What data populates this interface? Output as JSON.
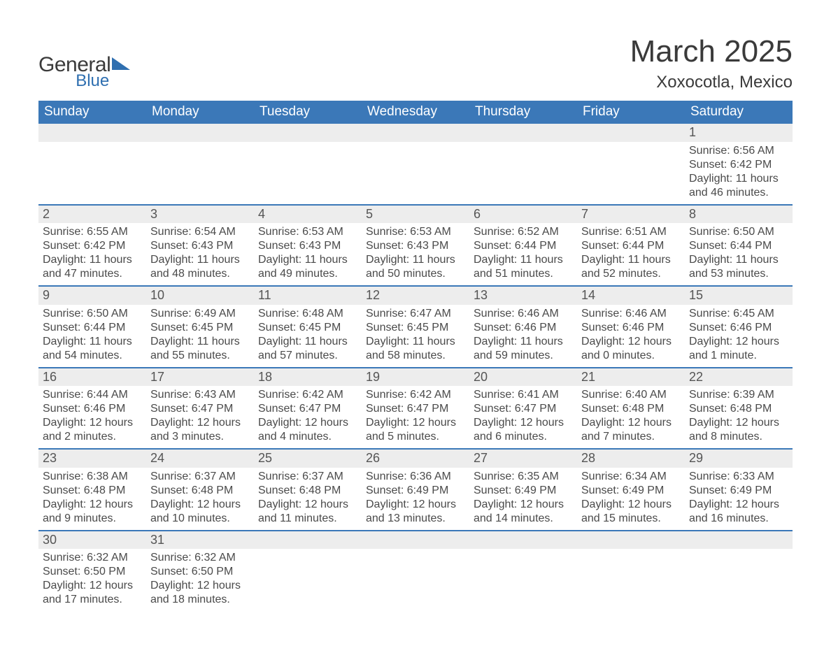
{
  "brand": {
    "word1": "General",
    "word2": "Blue"
  },
  "title": "March 2025",
  "location": "Xoxocotla, Mexico",
  "colors": {
    "header_bg": "#3b78b8",
    "header_text": "#ffffff",
    "daynum_bg": "#ededed",
    "row_border": "#3b78b8",
    "body_text": "#4a4a4a",
    "title_text": "#3a3a3a",
    "logo_blue": "#2f6fb0"
  },
  "typography": {
    "title_fontsize": 44,
    "location_fontsize": 24,
    "weekday_fontsize": 19,
    "daynum_fontsize": 18,
    "cell_fontsize": 16
  },
  "weekdays": [
    "Sunday",
    "Monday",
    "Tuesday",
    "Wednesday",
    "Thursday",
    "Friday",
    "Saturday"
  ],
  "weeks": [
    [
      null,
      null,
      null,
      null,
      null,
      null,
      {
        "n": "1",
        "sr": "Sunrise: 6:56 AM",
        "ss": "Sunset: 6:42 PM",
        "d1": "Daylight: 11 hours",
        "d2": "and 46 minutes."
      }
    ],
    [
      {
        "n": "2",
        "sr": "Sunrise: 6:55 AM",
        "ss": "Sunset: 6:42 PM",
        "d1": "Daylight: 11 hours",
        "d2": "and 47 minutes."
      },
      {
        "n": "3",
        "sr": "Sunrise: 6:54 AM",
        "ss": "Sunset: 6:43 PM",
        "d1": "Daylight: 11 hours",
        "d2": "and 48 minutes."
      },
      {
        "n": "4",
        "sr": "Sunrise: 6:53 AM",
        "ss": "Sunset: 6:43 PM",
        "d1": "Daylight: 11 hours",
        "d2": "and 49 minutes."
      },
      {
        "n": "5",
        "sr": "Sunrise: 6:53 AM",
        "ss": "Sunset: 6:43 PM",
        "d1": "Daylight: 11 hours",
        "d2": "and 50 minutes."
      },
      {
        "n": "6",
        "sr": "Sunrise: 6:52 AM",
        "ss": "Sunset: 6:44 PM",
        "d1": "Daylight: 11 hours",
        "d2": "and 51 minutes."
      },
      {
        "n": "7",
        "sr": "Sunrise: 6:51 AM",
        "ss": "Sunset: 6:44 PM",
        "d1": "Daylight: 11 hours",
        "d2": "and 52 minutes."
      },
      {
        "n": "8",
        "sr": "Sunrise: 6:50 AM",
        "ss": "Sunset: 6:44 PM",
        "d1": "Daylight: 11 hours",
        "d2": "and 53 minutes."
      }
    ],
    [
      {
        "n": "9",
        "sr": "Sunrise: 6:50 AM",
        "ss": "Sunset: 6:44 PM",
        "d1": "Daylight: 11 hours",
        "d2": "and 54 minutes."
      },
      {
        "n": "10",
        "sr": "Sunrise: 6:49 AM",
        "ss": "Sunset: 6:45 PM",
        "d1": "Daylight: 11 hours",
        "d2": "and 55 minutes."
      },
      {
        "n": "11",
        "sr": "Sunrise: 6:48 AM",
        "ss": "Sunset: 6:45 PM",
        "d1": "Daylight: 11 hours",
        "d2": "and 57 minutes."
      },
      {
        "n": "12",
        "sr": "Sunrise: 6:47 AM",
        "ss": "Sunset: 6:45 PM",
        "d1": "Daylight: 11 hours",
        "d2": "and 58 minutes."
      },
      {
        "n": "13",
        "sr": "Sunrise: 6:46 AM",
        "ss": "Sunset: 6:46 PM",
        "d1": "Daylight: 11 hours",
        "d2": "and 59 minutes."
      },
      {
        "n": "14",
        "sr": "Sunrise: 6:46 AM",
        "ss": "Sunset: 6:46 PM",
        "d1": "Daylight: 12 hours",
        "d2": "and 0 minutes."
      },
      {
        "n": "15",
        "sr": "Sunrise: 6:45 AM",
        "ss": "Sunset: 6:46 PM",
        "d1": "Daylight: 12 hours",
        "d2": "and 1 minute."
      }
    ],
    [
      {
        "n": "16",
        "sr": "Sunrise: 6:44 AM",
        "ss": "Sunset: 6:46 PM",
        "d1": "Daylight: 12 hours",
        "d2": "and 2 minutes."
      },
      {
        "n": "17",
        "sr": "Sunrise: 6:43 AM",
        "ss": "Sunset: 6:47 PM",
        "d1": "Daylight: 12 hours",
        "d2": "and 3 minutes."
      },
      {
        "n": "18",
        "sr": "Sunrise: 6:42 AM",
        "ss": "Sunset: 6:47 PM",
        "d1": "Daylight: 12 hours",
        "d2": "and 4 minutes."
      },
      {
        "n": "19",
        "sr": "Sunrise: 6:42 AM",
        "ss": "Sunset: 6:47 PM",
        "d1": "Daylight: 12 hours",
        "d2": "and 5 minutes."
      },
      {
        "n": "20",
        "sr": "Sunrise: 6:41 AM",
        "ss": "Sunset: 6:47 PM",
        "d1": "Daylight: 12 hours",
        "d2": "and 6 minutes."
      },
      {
        "n": "21",
        "sr": "Sunrise: 6:40 AM",
        "ss": "Sunset: 6:48 PM",
        "d1": "Daylight: 12 hours",
        "d2": "and 7 minutes."
      },
      {
        "n": "22",
        "sr": "Sunrise: 6:39 AM",
        "ss": "Sunset: 6:48 PM",
        "d1": "Daylight: 12 hours",
        "d2": "and 8 minutes."
      }
    ],
    [
      {
        "n": "23",
        "sr": "Sunrise: 6:38 AM",
        "ss": "Sunset: 6:48 PM",
        "d1": "Daylight: 12 hours",
        "d2": "and 9 minutes."
      },
      {
        "n": "24",
        "sr": "Sunrise: 6:37 AM",
        "ss": "Sunset: 6:48 PM",
        "d1": "Daylight: 12 hours",
        "d2": "and 10 minutes."
      },
      {
        "n": "25",
        "sr": "Sunrise: 6:37 AM",
        "ss": "Sunset: 6:48 PM",
        "d1": "Daylight: 12 hours",
        "d2": "and 11 minutes."
      },
      {
        "n": "26",
        "sr": "Sunrise: 6:36 AM",
        "ss": "Sunset: 6:49 PM",
        "d1": "Daylight: 12 hours",
        "d2": "and 13 minutes."
      },
      {
        "n": "27",
        "sr": "Sunrise: 6:35 AM",
        "ss": "Sunset: 6:49 PM",
        "d1": "Daylight: 12 hours",
        "d2": "and 14 minutes."
      },
      {
        "n": "28",
        "sr": "Sunrise: 6:34 AM",
        "ss": "Sunset: 6:49 PM",
        "d1": "Daylight: 12 hours",
        "d2": "and 15 minutes."
      },
      {
        "n": "29",
        "sr": "Sunrise: 6:33 AM",
        "ss": "Sunset: 6:49 PM",
        "d1": "Daylight: 12 hours",
        "d2": "and 16 minutes."
      }
    ],
    [
      {
        "n": "30",
        "sr": "Sunrise: 6:32 AM",
        "ss": "Sunset: 6:50 PM",
        "d1": "Daylight: 12 hours",
        "d2": "and 17 minutes."
      },
      {
        "n": "31",
        "sr": "Sunrise: 6:32 AM",
        "ss": "Sunset: 6:50 PM",
        "d1": "Daylight: 12 hours",
        "d2": "and 18 minutes."
      },
      null,
      null,
      null,
      null,
      null
    ]
  ]
}
